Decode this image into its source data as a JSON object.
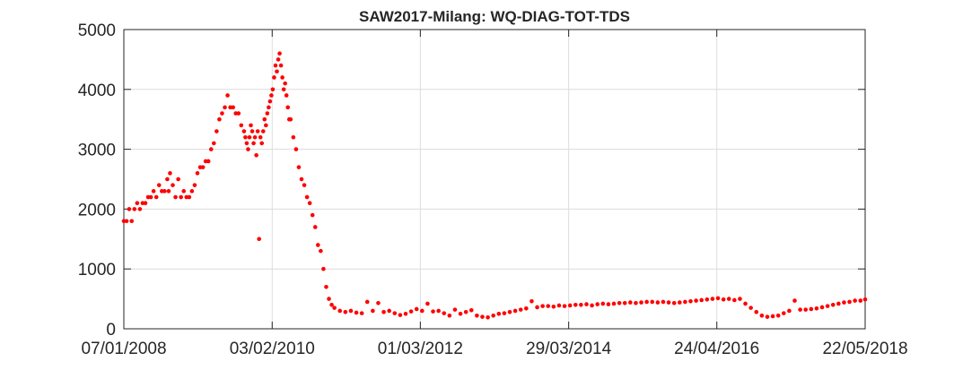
{
  "chart_data": {
    "type": "scatter",
    "title": "SAW2017-Milang: WQ-DIAG-TOT-TDS",
    "xlabel": "",
    "ylabel": "",
    "x_axis": {
      "type": "date",
      "range": [
        "2008-01-07",
        "2018-05-22"
      ],
      "ticks": [
        {
          "date": "2008-01-07",
          "label": "07/01/2008"
        },
        {
          "date": "2010-02-03",
          "label": "03/02/2010"
        },
        {
          "date": "2012-03-01",
          "label": "01/03/2012"
        },
        {
          "date": "2014-03-29",
          "label": "29/03/2014"
        },
        {
          "date": "2016-04-24",
          "label": "24/04/2016"
        },
        {
          "date": "2018-05-22",
          "label": "22/05/2018"
        }
      ]
    },
    "y_axis": {
      "range": [
        0,
        5000
      ],
      "ticks": [
        0,
        1000,
        2000,
        3000,
        4000,
        5000
      ],
      "tick_labels": [
        "0",
        "1000",
        "2000",
        "3000",
        "4000",
        "5000"
      ]
    },
    "grid": true,
    "marker_color": "#ff0000",
    "series": [
      {
        "name": "",
        "points": [
          [
            "2008-01-07",
            1800
          ],
          [
            "2008-01-21",
            1800
          ],
          [
            "2008-02-03",
            2000
          ],
          [
            "2008-02-16",
            1800
          ],
          [
            "2008-03-01",
            2000
          ],
          [
            "2008-03-15",
            2100
          ],
          [
            "2008-03-29",
            2000
          ],
          [
            "2008-04-12",
            2100
          ],
          [
            "2008-04-26",
            2100
          ],
          [
            "2008-05-10",
            2200
          ],
          [
            "2008-05-24",
            2200
          ],
          [
            "2008-06-07",
            2300
          ],
          [
            "2008-06-21",
            2200
          ],
          [
            "2008-07-05",
            2400
          ],
          [
            "2008-07-19",
            2300
          ],
          [
            "2008-08-02",
            2300
          ],
          [
            "2008-08-16",
            2500
          ],
          [
            "2008-08-23",
            2300
          ],
          [
            "2008-08-30",
            2600
          ],
          [
            "2008-09-13",
            2400
          ],
          [
            "2008-09-27",
            2200
          ],
          [
            "2008-10-11",
            2500
          ],
          [
            "2008-10-25",
            2200
          ],
          [
            "2008-11-08",
            2300
          ],
          [
            "2008-11-22",
            2200
          ],
          [
            "2008-12-06",
            2200
          ],
          [
            "2008-12-20",
            2300
          ],
          [
            "2009-01-03",
            2400
          ],
          [
            "2009-01-17",
            2600
          ],
          [
            "2009-01-31",
            2700
          ],
          [
            "2009-02-14",
            2700
          ],
          [
            "2009-02-28",
            2800
          ],
          [
            "2009-03-14",
            2800
          ],
          [
            "2009-03-28",
            3000
          ],
          [
            "2009-04-11",
            3100
          ],
          [
            "2009-04-25",
            3300
          ],
          [
            "2009-05-09",
            3500
          ],
          [
            "2009-05-23",
            3600
          ],
          [
            "2009-06-06",
            3700
          ],
          [
            "2009-06-20",
            3900
          ],
          [
            "2009-07-04",
            3700
          ],
          [
            "2009-07-18",
            3700
          ],
          [
            "2009-08-01",
            3600
          ],
          [
            "2009-08-15",
            3600
          ],
          [
            "2009-08-29",
            3400
          ],
          [
            "2009-09-12",
            3300
          ],
          [
            "2009-09-19",
            3200
          ],
          [
            "2009-09-26",
            3100
          ],
          [
            "2009-10-03",
            3000
          ],
          [
            "2009-10-10",
            3200
          ],
          [
            "2009-10-17",
            3400
          ],
          [
            "2009-10-24",
            3300
          ],
          [
            "2009-10-31",
            3100
          ],
          [
            "2009-11-07",
            3200
          ],
          [
            "2009-11-14",
            2900
          ],
          [
            "2009-11-21",
            3300
          ],
          [
            "2009-11-28",
            1500
          ],
          [
            "2009-12-05",
            3200
          ],
          [
            "2009-12-12",
            3100
          ],
          [
            "2009-12-19",
            3300
          ],
          [
            "2009-12-26",
            3500
          ],
          [
            "2010-01-02",
            3400
          ],
          [
            "2010-01-09",
            3600
          ],
          [
            "2010-01-16",
            3700
          ],
          [
            "2010-01-23",
            3800
          ],
          [
            "2010-01-30",
            3900
          ],
          [
            "2010-02-06",
            4000
          ],
          [
            "2010-02-13",
            4200
          ],
          [
            "2010-02-20",
            4400
          ],
          [
            "2010-02-27",
            4300
          ],
          [
            "2010-03-06",
            4500
          ],
          [
            "2010-03-13",
            4600
          ],
          [
            "2010-03-20",
            4400
          ],
          [
            "2010-03-27",
            4200
          ],
          [
            "2010-04-03",
            4000
          ],
          [
            "2010-04-10",
            4100
          ],
          [
            "2010-04-17",
            3900
          ],
          [
            "2010-04-24",
            3700
          ],
          [
            "2010-05-01",
            3500
          ],
          [
            "2010-05-08",
            3500
          ],
          [
            "2010-05-22",
            3200
          ],
          [
            "2010-06-05",
            3000
          ],
          [
            "2010-06-19",
            2700
          ],
          [
            "2010-07-03",
            2500
          ],
          [
            "2010-07-17",
            2400
          ],
          [
            "2010-07-31",
            2200
          ],
          [
            "2010-08-14",
            2100
          ],
          [
            "2010-08-28",
            1900
          ],
          [
            "2010-09-11",
            1700
          ],
          [
            "2010-09-25",
            1400
          ],
          [
            "2010-10-09",
            1300
          ],
          [
            "2010-10-23",
            1000
          ],
          [
            "2010-11-06",
            700
          ],
          [
            "2010-11-20",
            500
          ],
          [
            "2010-12-04",
            400
          ],
          [
            "2010-12-18",
            350
          ],
          [
            "2011-01-15",
            300
          ],
          [
            "2011-02-12",
            280
          ],
          [
            "2011-03-12",
            300
          ],
          [
            "2011-04-09",
            270
          ],
          [
            "2011-05-07",
            260
          ],
          [
            "2011-06-04",
            450
          ],
          [
            "2011-07-02",
            300
          ],
          [
            "2011-07-30",
            430
          ],
          [
            "2011-08-27",
            280
          ],
          [
            "2011-09-24",
            300
          ],
          [
            "2011-10-22",
            260
          ],
          [
            "2011-11-19",
            230
          ],
          [
            "2011-12-17",
            250
          ],
          [
            "2012-01-14",
            290
          ],
          [
            "2012-02-11",
            330
          ],
          [
            "2012-03-10",
            300
          ],
          [
            "2012-04-07",
            420
          ],
          [
            "2012-05-05",
            290
          ],
          [
            "2012-06-02",
            300
          ],
          [
            "2012-06-30",
            260
          ],
          [
            "2012-07-28",
            220
          ],
          [
            "2012-08-25",
            320
          ],
          [
            "2012-09-22",
            250
          ],
          [
            "2012-10-20",
            280
          ],
          [
            "2012-11-17",
            310
          ],
          [
            "2012-12-15",
            220
          ],
          [
            "2013-01-12",
            200
          ],
          [
            "2013-02-09",
            190
          ],
          [
            "2013-03-09",
            220
          ],
          [
            "2013-04-06",
            250
          ],
          [
            "2013-05-04",
            260
          ],
          [
            "2013-06-01",
            280
          ],
          [
            "2013-06-29",
            300
          ],
          [
            "2013-07-27",
            320
          ],
          [
            "2013-08-24",
            340
          ],
          [
            "2013-09-21",
            460
          ],
          [
            "2013-10-19",
            360
          ],
          [
            "2013-11-16",
            380
          ],
          [
            "2013-12-14",
            380
          ],
          [
            "2014-01-11",
            370
          ],
          [
            "2014-02-08",
            390
          ],
          [
            "2014-03-08",
            380
          ],
          [
            "2014-04-05",
            390
          ],
          [
            "2014-05-03",
            400
          ],
          [
            "2014-05-31",
            400
          ],
          [
            "2014-06-28",
            410
          ],
          [
            "2014-07-26",
            390
          ],
          [
            "2014-08-23",
            410
          ],
          [
            "2014-09-20",
            420
          ],
          [
            "2014-10-18",
            410
          ],
          [
            "2014-11-15",
            420
          ],
          [
            "2014-12-13",
            430
          ],
          [
            "2015-01-10",
            430
          ],
          [
            "2015-02-07",
            440
          ],
          [
            "2015-03-07",
            430
          ],
          [
            "2015-04-04",
            440
          ],
          [
            "2015-05-02",
            450
          ],
          [
            "2015-05-30",
            450
          ],
          [
            "2015-06-27",
            440
          ],
          [
            "2015-07-25",
            450
          ],
          [
            "2015-08-22",
            440
          ],
          [
            "2015-09-19",
            430
          ],
          [
            "2015-10-17",
            440
          ],
          [
            "2015-11-14",
            450
          ],
          [
            "2015-12-12",
            460
          ],
          [
            "2016-01-09",
            470
          ],
          [
            "2016-02-06",
            480
          ],
          [
            "2016-03-05",
            490
          ],
          [
            "2016-04-02",
            500
          ],
          [
            "2016-04-30",
            510
          ],
          [
            "2016-05-28",
            490
          ],
          [
            "2016-06-25",
            500
          ],
          [
            "2016-07-23",
            480
          ],
          [
            "2016-08-20",
            500
          ],
          [
            "2016-09-17",
            420
          ],
          [
            "2016-10-15",
            350
          ],
          [
            "2016-11-12",
            280
          ],
          [
            "2016-12-10",
            220
          ],
          [
            "2017-01-07",
            200
          ],
          [
            "2017-02-04",
            210
          ],
          [
            "2017-03-04",
            220
          ],
          [
            "2017-04-01",
            260
          ],
          [
            "2017-04-29",
            300
          ],
          [
            "2017-05-27",
            470
          ],
          [
            "2017-06-24",
            320
          ],
          [
            "2017-07-22",
            320
          ],
          [
            "2017-08-19",
            330
          ],
          [
            "2017-09-16",
            340
          ],
          [
            "2017-10-14",
            360
          ],
          [
            "2017-11-11",
            380
          ],
          [
            "2017-12-09",
            400
          ],
          [
            "2018-01-06",
            420
          ],
          [
            "2018-02-03",
            440
          ],
          [
            "2018-03-03",
            450
          ],
          [
            "2018-03-31",
            470
          ],
          [
            "2018-04-28",
            470
          ],
          [
            "2018-05-22",
            490
          ]
        ]
      }
    ]
  }
}
